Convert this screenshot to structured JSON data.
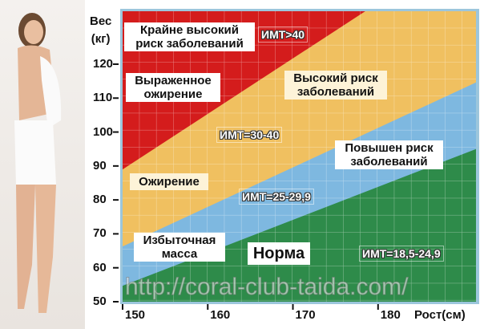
{
  "chart_data": {
    "type": "area",
    "xlabel": "Рост(см)",
    "ylabel": "Вес (кг)",
    "ylabel_lines": [
      "Вес",
      "(кг)"
    ],
    "xlim": [
      150,
      191.5
    ],
    "ylim": [
      50,
      135.6
    ],
    "x_ticks": [
      150,
      160,
      170,
      180
    ],
    "y_ticks": [
      50,
      60,
      70,
      80,
      90,
      100,
      110,
      120
    ],
    "grid": true,
    "boundaries": [
      {
        "between": [
          "green",
          "blue"
        ],
        "points": [
          [
            150,
            54.7
          ],
          [
            191.5,
            95
          ]
        ]
      },
      {
        "between": [
          "blue",
          "yellow"
        ],
        "points": [
          [
            150,
            66.3
          ],
          [
            191.5,
            114.6
          ]
        ]
      },
      {
        "between": [
          "yellow",
          "red"
        ],
        "points": [
          [
            150,
            89
          ],
          [
            178.5,
            135.6
          ]
        ]
      }
    ],
    "zones": [
      {
        "color": "#2e8b4a",
        "name": "Норма",
        "bmi": "ИМТ=18,5-24,9"
      },
      {
        "color": "#7eb8e0",
        "name": "Избыточная масса",
        "risk": "Повышен риск заболеваний",
        "bmi": "ИМТ=25-29,9"
      },
      {
        "color": "#f0c060",
        "name": "Ожирение",
        "risk": "Высокий риск заболеваний",
        "bmi": "ИМТ=30-40"
      },
      {
        "color": "#d41c1c",
        "name": "Выраженное ожирение",
        "risk": "Крайне высокий риск заболеваний",
        "bmi": "ИМТ>40"
      }
    ]
  },
  "labels": {
    "extreme_risk": "Крайне высокий риск заболеваний",
    "bmi_40": "ИМТ>40",
    "severe_obesity": "Выраженное ожирение",
    "high_risk": "Высокий риск заболеваний",
    "bmi_30_40": "ИМТ=30-40",
    "raised_risk": "Повышен риск заболеваний",
    "obesity": "Ожирение",
    "bmi_25": "ИМТ=25-29,9",
    "overweight": "Избыточная масса",
    "norm": "Норма",
    "bmi_18": "ИМТ=18,5-24,9"
  },
  "watermark": "http://coral-club-taida.com/"
}
